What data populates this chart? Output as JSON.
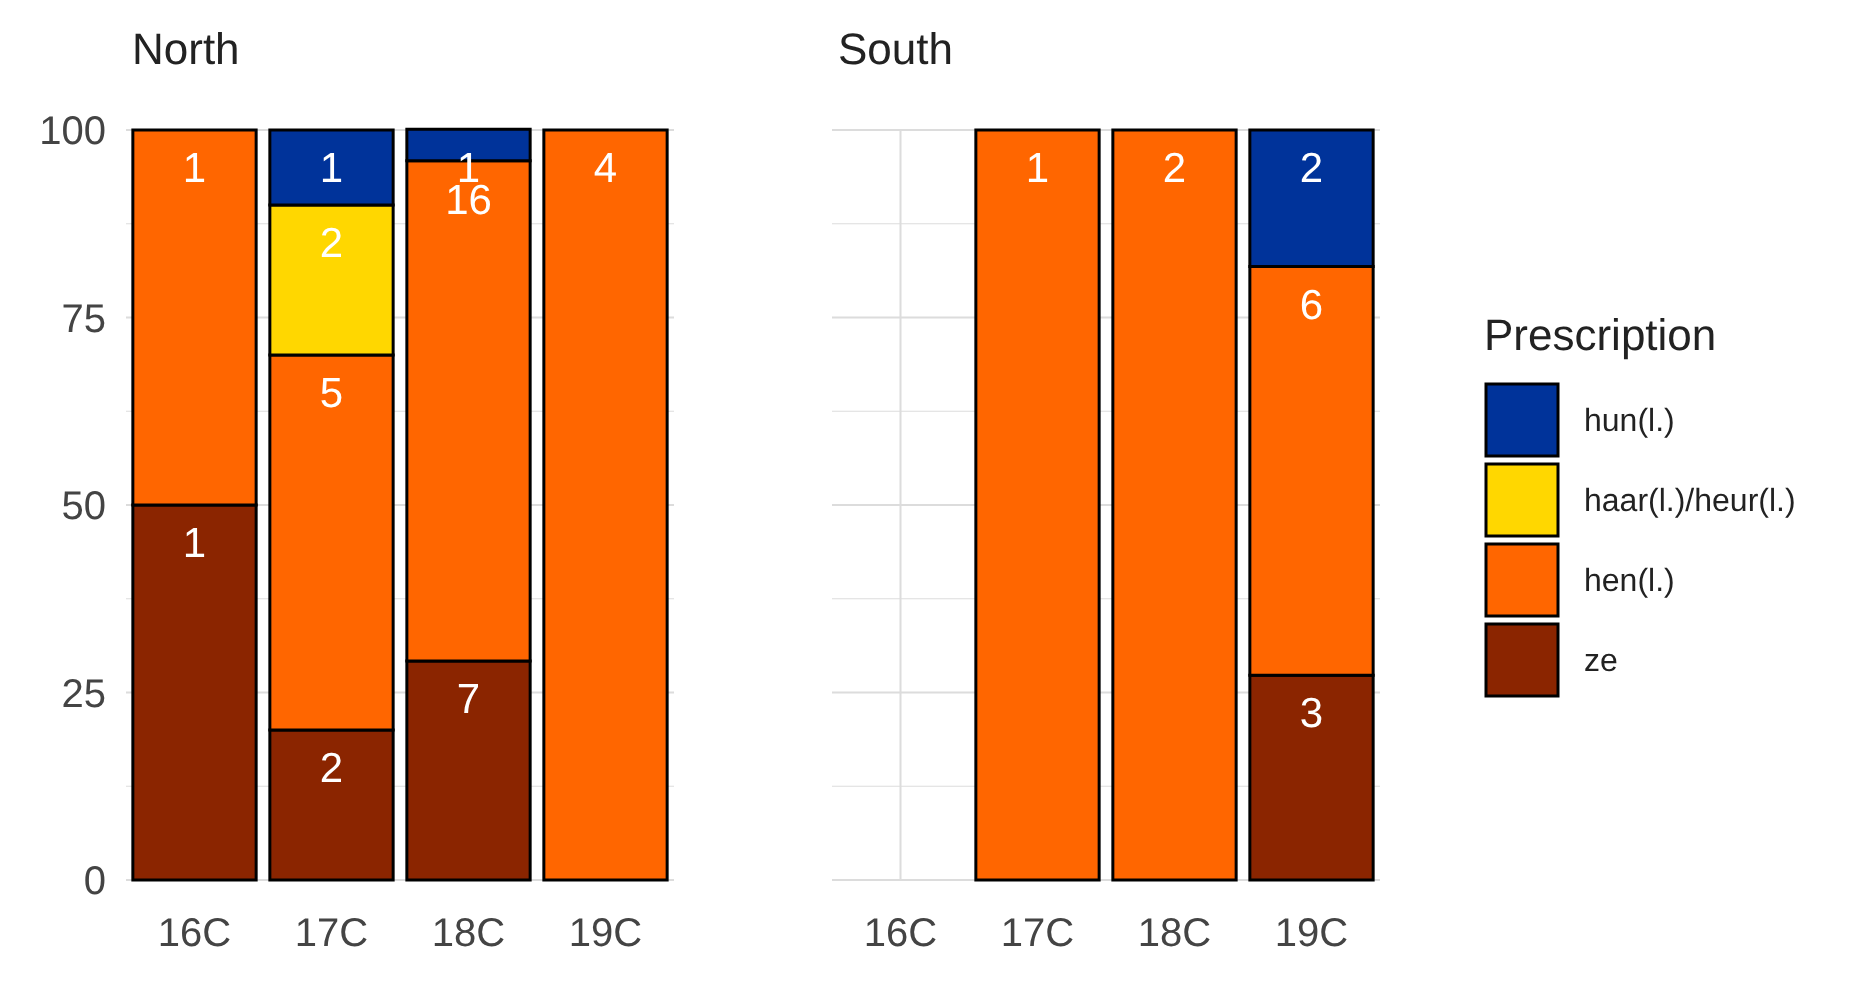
{
  "chart_data": [
    {
      "type": "bar",
      "title": "North",
      "stacked": true,
      "categories": [
        "16C",
        "17C",
        "18C",
        "19C"
      ],
      "ylim": [
        0,
        100
      ],
      "yticks": [
        0,
        {
          "value": 12.5,
          "label": null
        },
        25,
        {
          "value": 37.5,
          "label": null
        },
        50,
        {
          "value": 62.5,
          "label": null
        },
        75,
        {
          "value": 87.5,
          "label": null
        },
        100
      ],
      "grid": true,
      "legend": false,
      "series": [
        {
          "color": "#8b2500",
          "values": [
            50,
            20,
            29.2,
            null
          ]
        },
        {
          "color": "#ff6600",
          "values": [
            50,
            50,
            66.7,
            100
          ]
        },
        {
          "color": "#ffd700",
          "values": [
            null,
            20,
            null,
            null
          ]
        },
        {
          "color": "#00339a",
          "values": [
            null,
            10,
            4.2,
            null
          ]
        }
      ],
      "annotations": [
        {
          "text": "1",
          "x": "16C",
          "y": 50
        },
        {
          "text": "1",
          "x": "16C",
          "y": 100
        },
        {
          "text": "2",
          "x": "17C",
          "y": 20
        },
        {
          "text": "5",
          "x": "17C",
          "y": 70
        },
        {
          "text": "2",
          "x": "17C",
          "y": 90
        },
        {
          "text": "1",
          "x": "17C",
          "y": 100
        },
        {
          "text": "7",
          "x": "18C",
          "y": 29.2
        },
        {
          "text": "16",
          "x": "18C",
          "y": 95.8
        },
        {
          "text": "1",
          "x": "18C",
          "y": 100
        },
        {
          "text": "4",
          "x": "19C",
          "y": 100
        }
      ]
    },
    {
      "type": "bar",
      "title": "South",
      "stacked": true,
      "categories": [
        "16C",
        "17C",
        "18C",
        "19C"
      ],
      "ylim": [
        0,
        100
      ],
      "yticks": [
        0,
        {
          "value": 12.5,
          "label": null
        },
        25,
        {
          "value": 37.5,
          "label": null
        },
        50,
        {
          "value": 62.5,
          "label": null
        },
        75,
        {
          "value": 87.5,
          "label": null
        },
        100
      ],
      "tick_labels": "x",
      "grid": true,
      "legend": "right",
      "legend_title": "Prescription",
      "series": [
        {
          "name": "ze",
          "color": "#8b2500",
          "values": [
            null,
            null,
            null,
            27.3
          ]
        },
        {
          "name": "hen(l.)",
          "color": "#ff6600",
          "values": [
            null,
            100,
            100,
            54.5
          ]
        },
        {
          "name": "haar(l.)/heur(l.)",
          "color": "#ffd700",
          "values": [
            null,
            null,
            null,
            null
          ]
        },
        {
          "name": "hun(l.)",
          "color": "#00339a",
          "values": [
            null,
            null,
            null,
            18.2
          ]
        }
      ],
      "annotations": [
        {
          "text": "1",
          "x": "17C",
          "y": 100
        },
        {
          "text": "2",
          "x": "18C",
          "y": 100
        },
        {
          "text": "3",
          "x": "19C",
          "y": 27.3
        },
        {
          "text": "6",
          "x": "19C",
          "y": 81.8
        },
        {
          "text": "2",
          "x": "19C",
          "y": 100
        }
      ]
    }
  ]
}
